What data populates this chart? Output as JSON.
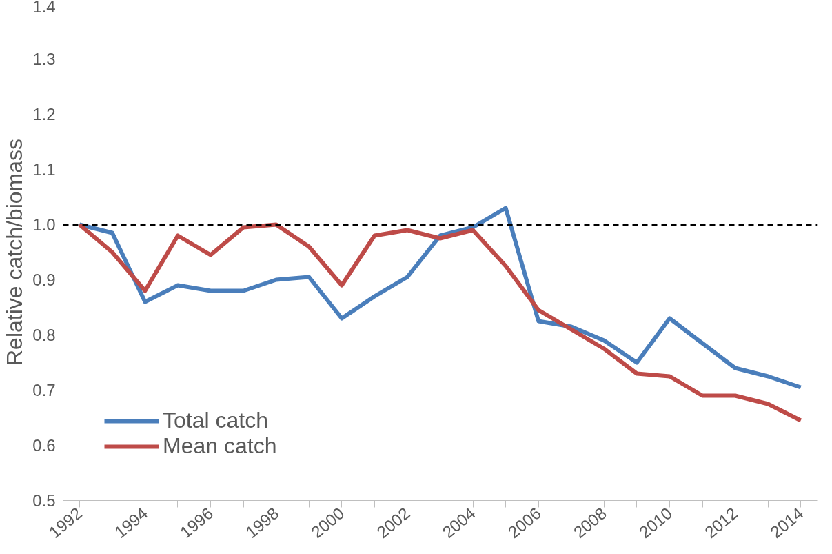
{
  "chart_data": {
    "type": "line",
    "ylabel": "Relative catch/biomass",
    "x": [
      1992,
      1993,
      1994,
      1995,
      1996,
      1997,
      1998,
      1999,
      2000,
      2001,
      2002,
      2003,
      2004,
      2005,
      2006,
      2007,
      2008,
      2009,
      2010,
      2011,
      2012,
      2013,
      2014
    ],
    "series": [
      {
        "name": "Total catch",
        "color": "#4a7ebb",
        "values": [
          1.0,
          0.985,
          0.86,
          0.89,
          0.88,
          0.88,
          0.9,
          0.905,
          0.83,
          0.87,
          0.905,
          0.98,
          0.995,
          1.03,
          0.825,
          0.815,
          0.79,
          0.75,
          0.83,
          0.785,
          0.74,
          0.725,
          0.705
        ]
      },
      {
        "name": "Mean catch",
        "color": "#be4b48",
        "values": [
          1.0,
          0.95,
          0.88,
          0.98,
          0.945,
          0.995,
          1.0,
          0.96,
          0.89,
          0.98,
          0.99,
          0.975,
          0.99,
          0.925,
          0.845,
          0.81,
          0.775,
          0.73,
          0.725,
          0.69,
          0.69,
          0.675,
          0.645
        ]
      }
    ],
    "xlim": [
      1991.5,
      2014.5
    ],
    "xticks": [
      1992,
      {
        "value": 1993,
        "label": null
      },
      1994,
      {
        "value": 1995,
        "label": null
      },
      1996,
      {
        "value": 1997,
        "label": null
      },
      1998,
      {
        "value": 1999,
        "label": null
      },
      2000,
      {
        "value": 2001,
        "label": null
      },
      2002,
      {
        "value": 2003,
        "label": null
      },
      2004,
      {
        "value": 2005,
        "label": null
      },
      2006,
      {
        "value": 2007,
        "label": null
      },
      2008,
      {
        "value": 2009,
        "label": null
      },
      2010,
      {
        "value": 2011,
        "label": null
      },
      2012,
      {
        "value": 2013,
        "label": null
      },
      2014
    ],
    "ylim": [
      0.5,
      1.4
    ],
    "yticks": [
      {
        "value": 0.5,
        "label": "0.5"
      },
      {
        "value": 0.6,
        "label": "0.6"
      },
      {
        "value": 0.7,
        "label": "0.7"
      },
      {
        "value": 0.8,
        "label": "0.8"
      },
      {
        "value": 0.9,
        "label": "0.9"
      },
      {
        "value": 1.0,
        "label": "1.0"
      },
      {
        "value": 1.1,
        "label": "1.1"
      },
      {
        "value": 1.2,
        "label": "1.2"
      },
      {
        "value": 1.3,
        "label": "1.3"
      },
      {
        "value": 1.4,
        "label": "1.4"
      }
    ],
    "ref_lines": [
      {
        "axis": "y",
        "value": 1.0,
        "color": "#000000",
        "line_style": "dashed"
      }
    ],
    "grid": false,
    "legend": "bottom left",
    "marker": "none",
    "line_style": "solid"
  }
}
